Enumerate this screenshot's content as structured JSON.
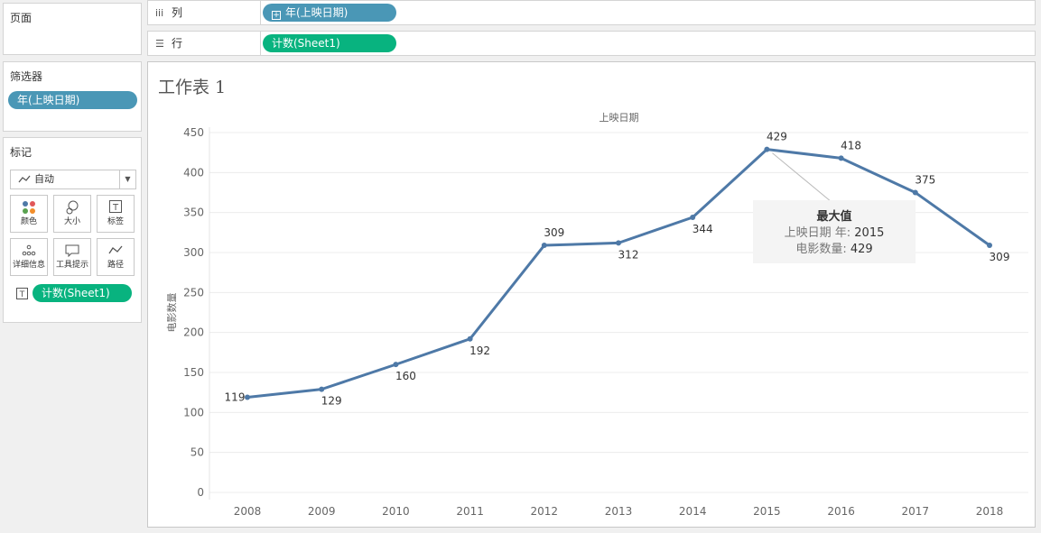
{
  "pages_panel": {
    "title": "页面"
  },
  "filters_panel": {
    "title": "筛选器",
    "pill": "年(上映日期)"
  },
  "marks_panel": {
    "title": "标记",
    "mark_type": "自动",
    "buttons": [
      {
        "label": "颜色",
        "icon": "color-dots-icon"
      },
      {
        "label": "大小",
        "icon": "size-icon"
      },
      {
        "label": "标签",
        "icon": "label-icon"
      },
      {
        "label": "详细信息",
        "icon": "detail-icon"
      },
      {
        "label": "工具提示",
        "icon": "tooltip-icon"
      },
      {
        "label": "路径",
        "icon": "path-icon"
      }
    ],
    "label_pill": "计数(Sheet1)"
  },
  "columns_shelf": {
    "label": "列",
    "pill": "年(上映日期)"
  },
  "rows_shelf": {
    "label": "行",
    "pill": "计数(Sheet1)"
  },
  "sheet": {
    "title": "工作表 1"
  },
  "colors": {
    "line": "#4e79a7",
    "pill_blue": "#4a97b6",
    "pill_green": "#08b37f"
  },
  "chart_data": {
    "type": "line",
    "title": "",
    "xlabel": "上映日期",
    "ylabel": "电影数量",
    "categories": [
      "2008",
      "2009",
      "2010",
      "2011",
      "2012",
      "2013",
      "2014",
      "2015",
      "2016",
      "2017",
      "2018"
    ],
    "values": [
      119,
      129,
      160,
      192,
      309,
      312,
      344,
      429,
      418,
      375,
      309
    ],
    "y_ticks": [
      0,
      50,
      100,
      150,
      200,
      250,
      300,
      350,
      400,
      450
    ],
    "ylim": [
      0,
      450
    ],
    "grid": true,
    "annotation": {
      "title": "最大值",
      "line1_label": "上映日期 年:",
      "line1_value": "2015",
      "line2_label": "电影数量:",
      "line2_value": "429",
      "target_category": "2015"
    }
  }
}
